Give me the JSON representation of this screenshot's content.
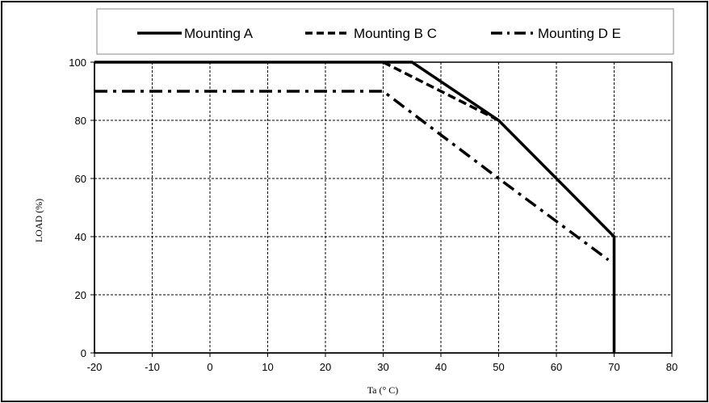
{
  "chart_data": {
    "type": "line",
    "title": "",
    "xlabel": "Ta (° C)",
    "ylabel": "LOAD (%)",
    "xlim": [
      -20,
      80
    ],
    "ylim": [
      0,
      100
    ],
    "x_ticks": [
      -20,
      -10,
      0,
      10,
      20,
      30,
      40,
      50,
      60,
      70,
      80
    ],
    "y_ticks": [
      0,
      20,
      40,
      60,
      80,
      100
    ],
    "grid": true,
    "legend_position": "top",
    "series": [
      {
        "name": "Mounting A",
        "style": "solid",
        "color": "#000000",
        "points": [
          [
            -20,
            100
          ],
          [
            35,
            100
          ],
          [
            50,
            80
          ],
          [
            70,
            40
          ],
          [
            70,
            0
          ]
        ]
      },
      {
        "name": "Mounting B C",
        "style": "dashed",
        "color": "#000000",
        "points": [
          [
            30,
            100
          ],
          [
            50,
            80
          ]
        ]
      },
      {
        "name": "Mounting D E",
        "style": "dash-dot",
        "color": "#000000",
        "points": [
          [
            -20,
            90
          ],
          [
            30,
            90
          ],
          [
            50,
            60
          ],
          [
            69,
            32
          ]
        ]
      }
    ]
  }
}
